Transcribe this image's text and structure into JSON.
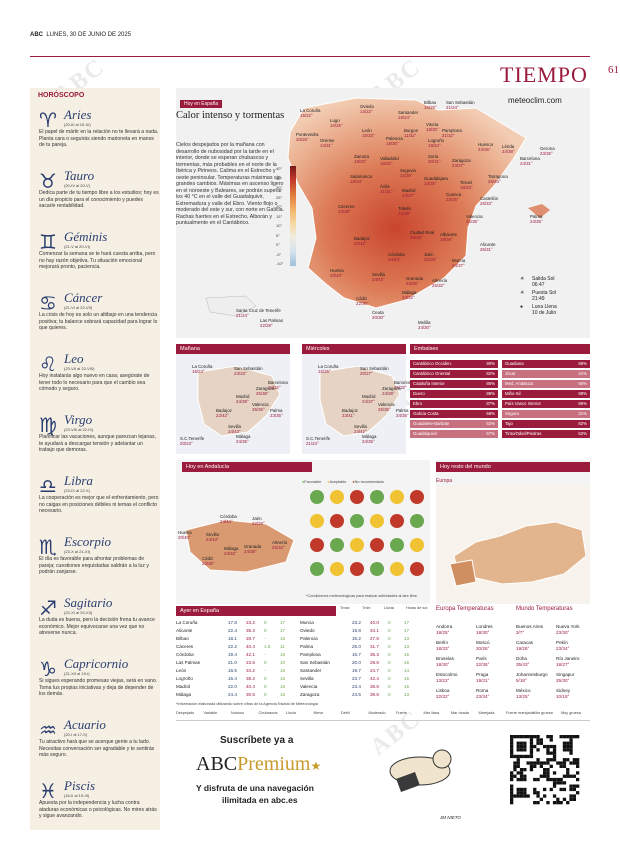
{
  "header": {
    "paper": "ABC",
    "date": "LUNES, 30 DE JUNIO DE 2025",
    "section": "TIEMPO",
    "page": "61"
  },
  "horoscope": {
    "title": "HORÓSCOPO",
    "signs": [
      {
        "sym": "♈",
        "name": "Aries",
        "dates": "(20-III al 19-IV)",
        "text": "El papel de mártir en la relación no te llevará a nada. Planta cara o seguirás siendo marioneta en manos de tu pareja."
      },
      {
        "sym": "♉",
        "name": "Tauro",
        "dates": "(20-IV al 20-V)",
        "text": "Dedica parte de tu tiempo libre a los estudios; hoy es un día propicio para el conocimiento y puedes sacarle rentabilidad."
      },
      {
        "sym": "♊",
        "name": "Géminis",
        "dates": "(21-V al 20-VI)",
        "text": "Comenzar la semana se te hará cuesta arriba, pero no hay razón objetiva. Tu situación emocional mejorará pronto, paciencia."
      },
      {
        "sym": "♋",
        "name": "Cáncer",
        "dates": "(21-VI al 22-VII)",
        "text": "La crisis de hoy es solo un altibajo en una tendencia positiva; tu balance sobrará capacidad para lograr lo que quieres."
      },
      {
        "sym": "♌",
        "name": "Leo",
        "dates": "(23-VII al 22-VIII)",
        "text": "Hoy instalarás algo nuevo en casa; asegúrate de tener todo lo necesario para que el cambio sea cómodo y seguro."
      },
      {
        "sym": "♍",
        "name": "Virgo",
        "dates": "(23-VIII al 22-IX)",
        "text": "Planificar las vacaciones, aunque parezcan lejanas, te ayudará a descargar tensión y adelantar un trabajo que demoras."
      },
      {
        "sym": "♎",
        "name": "Libra",
        "dates": "(23-IX al 22-X)",
        "text": "La cooperación es mejor que el enfrentamiento, pero no caigas en posiciones débiles ni temas el conflicto necesario."
      },
      {
        "sym": "♏",
        "name": "Escorpio",
        "dates": "(23-X al 21-XI)",
        "text": "El día es favorable para afrontar problemas de pareja; cuestiones enquistadas saldrán a la luz y podrán zanjarse."
      },
      {
        "sym": "♐",
        "name": "Sagitario",
        "dates": "(22-XI al 20-XII)",
        "text": "La duda es buena, pero la decisión frena tu avance económico. Mejor equivocarse una vez que no atreverse nunca."
      },
      {
        "sym": "♑",
        "name": "Capricornio",
        "dates": "(21-XII al 19-I)",
        "text": "Si sigues esperando promesas viejas, será en vano. Toma tus propias iniciativas y deja de depender de los demás."
      },
      {
        "sym": "♒",
        "name": "Acuario",
        "dates": "(20-I al 17-II)",
        "text": "Tu atractivo hará que se acerque gente a tu lado. Necesitas conversación ser agradable y te sentirás más seguro."
      },
      {
        "sym": "♓",
        "name": "Piscis",
        "dates": "(18-II al 19-III)",
        "text": "Apuesta por la independencia y lucha contra ataduras económicas o psicológicas. No mires atrás y sigue avanzando."
      }
    ]
  },
  "today": {
    "tag": "Hoy en España",
    "title": "Calor intenso y tormentas",
    "text": "Cielos despejados por la mañana con desarrollo de nubosidad por la tarde en el interior, donde se esperan chubascos y tormentas, más probables en el norte de la Ibérica y Pirineos. Calima en el Estrecho y oeste peninsular. Temperaturas máximas sin grandes cambios. Máximas en ascenso ligero en el noroeste y Baleares, se podrán superar los 40 °C en el valle del Guadalquivir, Extremadura y valle del Ebro. Viento flojo o moderado del este y sur, con norte en Galicia. Rachas fuertes en el Estrecho, Alborán y puntualmente en el Cantábrico.",
    "site": "meteoclim.com",
    "legend": [
      "40°",
      "35°",
      "30°",
      "25°",
      "20°",
      "15°",
      "10°",
      "5°",
      "0°",
      "-5°",
      "-10°"
    ],
    "sun": {
      "rise_label": "Salida Sol",
      "rise": "06:47",
      "set_label": "Puesta Sol",
      "set": "21:49",
      "moon_label": "Luna Llena",
      "moon": "10 de Julio"
    },
    "cities": [
      {
        "n": "La Coruña",
        "t": "15/22°"
      },
      {
        "n": "Oviedo",
        "t": "14/22°"
      },
      {
        "n": "Santander",
        "t": "18/24°"
      },
      {
        "n": "Bilbao",
        "t": "16/25°"
      },
      {
        "n": "San Sebastián",
        "t": "21/24°"
      },
      {
        "n": "Lugo",
        "t": "10/26°"
      },
      {
        "n": "Pontevedra",
        "t": "20/26°"
      },
      {
        "n": "Orense",
        "t": "14/31°"
      },
      {
        "n": "León",
        "t": "16/33°"
      },
      {
        "n": "Palencia",
        "t": "18/30°"
      },
      {
        "n": "Burgos",
        "t": "11/32°"
      },
      {
        "n": "Vitoria",
        "t": "18/30°"
      },
      {
        "n": "Pamplona",
        "t": "21/32°"
      },
      {
        "n": "Logroño",
        "t": "18/34°"
      },
      {
        "n": "Huesca",
        "t": "24/36°"
      },
      {
        "n": "Lérida",
        "t": "24/38°"
      },
      {
        "n": "Gerona",
        "t": "23/35°"
      },
      {
        "n": "Barcelona",
        "t": "24/31°"
      },
      {
        "n": "Zamora",
        "t": "19/33°"
      },
      {
        "n": "Valladolid",
        "t": "18/32°"
      },
      {
        "n": "Soria",
        "t": "20/31°"
      },
      {
        "n": "Zaragoza",
        "t": "23/37°"
      },
      {
        "n": "Tarragona",
        "t": "26/33°"
      },
      {
        "n": "Salamanca",
        "t": "18/34°"
      },
      {
        "n": "Segovia",
        "t": "22/35°"
      },
      {
        "n": "Ávila",
        "t": "21/31°"
      },
      {
        "n": "Guadalajara",
        "t": "23/35°"
      },
      {
        "n": "Teruel",
        "t": "18/33°"
      },
      {
        "n": "Castellón",
        "t": "26/33°"
      },
      {
        "n": "Madrid",
        "t": "24/37°"
      },
      {
        "n": "Cuenca",
        "t": "23/35°"
      },
      {
        "n": "Palma",
        "t": "24/35°"
      },
      {
        "n": "Cáceres",
        "t": "23/39°"
      },
      {
        "n": "Toledo",
        "t": "24/39°"
      },
      {
        "n": "Valencia",
        "t": "25/35°"
      },
      {
        "n": "Ciudad Real",
        "t": "26/38°"
      },
      {
        "n": "Albacete",
        "t": "19/39°"
      },
      {
        "n": "Badajoz",
        "t": "22/42°"
      },
      {
        "n": "Alicante",
        "t": "26/31°"
      },
      {
        "n": "Córdoba",
        "t": "24/44°"
      },
      {
        "n": "Jaén",
        "t": "22/39°"
      },
      {
        "n": "Murcia",
        "t": "24/37°"
      },
      {
        "n": "Huelva",
        "t": "20/40°"
      },
      {
        "n": "Sevilla",
        "t": "24/43°"
      },
      {
        "n": "Granada",
        "t": "24/38°"
      },
      {
        "n": "Almería",
        "t": "25/32°"
      },
      {
        "n": "Málaga",
        "t": "24/32°"
      },
      {
        "n": "Cádiz",
        "t": "22/30°"
      },
      {
        "n": "Ceuta",
        "t": "20/30°"
      },
      {
        "n": "Melilla",
        "t": "24/30°"
      },
      {
        "n": "Santa Cruz de Tenerife",
        "t": "21/24°"
      },
      {
        "n": "Las Palmas",
        "t": "22/28°"
      }
    ]
  },
  "forecast": {
    "tomorrow_tag": "Mañana",
    "wed_tag": "Miércoles",
    "tomorrow_cities": [
      {
        "n": "La Coruña",
        "t": "16/24°"
      },
      {
        "n": "San Sebastián",
        "t": "23/33°"
      },
      {
        "n": "Zaragoza",
        "t": "25/38°"
      },
      {
        "n": "Barcelona",
        "t": "24/32°"
      },
      {
        "n": "Madrid",
        "t": "24/39°"
      },
      {
        "n": "Valencia",
        "t": "25/36°"
      },
      {
        "n": "Palma",
        "t": "23/35°"
      },
      {
        "n": "Badajoz",
        "t": "22/42°"
      },
      {
        "n": "Sevilla",
        "t": "24/43°"
      },
      {
        "n": "Málaga",
        "t": "24/35°"
      },
      {
        "n": "S.C.Tenerife",
        "t": "20/23°"
      }
    ],
    "wed_cities": [
      {
        "n": "La Coruña",
        "t": "16/25°"
      },
      {
        "n": "San Sebastián",
        "t": "20/27°"
      },
      {
        "n": "Zaragoza",
        "t": "24/38°"
      },
      {
        "n": "Barcelona",
        "t": "25/32°"
      },
      {
        "n": "Madrid",
        "t": "24/37°"
      },
      {
        "n": "Valencia",
        "t": "25/35°"
      },
      {
        "n": "Palma",
        "t": "24/35°"
      },
      {
        "n": "Badajoz",
        "t": "23/41°"
      },
      {
        "n": "Sevilla",
        "t": "24/42°"
      },
      {
        "n": "Málaga",
        "t": "24/35°"
      },
      {
        "n": "S.C.Tenerife",
        "t": "21/24°"
      }
    ]
  },
  "reservoirs": {
    "tag": "Embalses",
    "left": [
      {
        "n": "Cantábrico Occiden.",
        "v": "90%",
        "c": "#9a1b3c"
      },
      {
        "n": "Cantábrico Oriental",
        "v": "82%",
        "c": "#9a1b3c"
      },
      {
        "n": "Cataluña Interior",
        "v": "86%",
        "c": "#9a1b3c"
      },
      {
        "n": "Duero",
        "v": "88%",
        "c": "#9a1b3c"
      },
      {
        "n": "Ebro",
        "v": "87%",
        "c": "#9a1b3c"
      },
      {
        "n": "Galicia Costa",
        "v": "68%",
        "c": "#9a1b3c"
      },
      {
        "n": "Guadalete-Barbate",
        "v": "52%",
        "c": "#c7707f"
      },
      {
        "n": "Guadalquivir",
        "v": "57%",
        "c": "#c7707f"
      }
    ],
    "right": [
      {
        "n": "Guadiana",
        "v": "68%",
        "c": "#9a1b3c"
      },
      {
        "n": "Júcar",
        "v": "41%",
        "c": "#c7707f"
      },
      {
        "n": "Med. Andaluza",
        "v": "56%",
        "c": "#c7707f"
      },
      {
        "n": "Miño-Sil",
        "v": "88%",
        "c": "#9a1b3c"
      },
      {
        "n": "País Vasco Interior",
        "v": "95%",
        "c": "#9a1b3c"
      },
      {
        "n": "Segura",
        "v": "31%",
        "c": "#c7707f"
      },
      {
        "n": "Tajo",
        "v": "82%",
        "c": "#9a1b3c"
      },
      {
        "n": "Tinto/Odiel/Piedras",
        "v": "62%",
        "c": "#9a1b3c"
      }
    ]
  },
  "andalucia": {
    "tag": "Hoy en Andalucía",
    "legend": [
      "Favorable",
      "Aceptable",
      "No recomendado"
    ],
    "cities": [
      {
        "n": "Córdoba",
        "t": "24/44°"
      },
      {
        "n": "Jaén",
        "t": "22/39°"
      },
      {
        "n": "Huelva",
        "t": "20/40°"
      },
      {
        "n": "Sevilla",
        "t": "24/43°"
      },
      {
        "n": "Málaga",
        "t": "24/32°"
      },
      {
        "n": "Granada",
        "t": "24/38°"
      },
      {
        "n": "Almería",
        "t": "25/32°"
      },
      {
        "n": "Cádiz",
        "t": "22/30°"
      }
    ],
    "note": "*Condiciones meteorológicas para realizar actividades al aire libre"
  },
  "world": {
    "tag": "Hoy resto del mundo",
    "region": "Europa"
  },
  "yesterday": {
    "tag": "Ayer en España",
    "headers": [
      "Tmax",
      "Tmin",
      "Lluvia",
      "Horas de sol"
    ],
    "rows_left": [
      [
        "La Coruña",
        "17.8",
        "23.2",
        "0",
        "17"
      ],
      [
        "Alicante",
        "22.4",
        "35.3",
        "0",
        "17"
      ],
      [
        "Bilbao",
        "18.1",
        "28.7",
        "-",
        "15"
      ],
      [
        "Cáceres",
        "22.2",
        "40.4",
        "1.6",
        "11"
      ],
      [
        "Córdoba",
        "19.4",
        "42.1",
        "-",
        "16"
      ],
      [
        "Las Palmas",
        "21.0",
        "23.5",
        "0",
        "10"
      ],
      [
        "León",
        "16.5",
        "34.2",
        "-",
        "16"
      ],
      [
        "Logroño",
        "16.4",
        "38.2",
        "0",
        "15"
      ],
      [
        "Madrid",
        "22.0",
        "40.4",
        "0",
        "16"
      ],
      [
        "Málaga",
        "24.4",
        "30.5",
        "0",
        "15"
      ]
    ],
    "rows_right": [
      [
        "Murcia",
        "23.2",
        "40.0",
        "0",
        "17"
      ],
      [
        "Oviedo",
        "19.8",
        "34.1",
        "0",
        "17"
      ],
      [
        "Palencia",
        "16.2",
        "27.8",
        "0",
        "13"
      ],
      [
        "Palma",
        "25.0",
        "31.7",
        "0",
        "13"
      ],
      [
        "Pamplona",
        "16.7",
        "35.3",
        "0",
        "15"
      ],
      [
        "San Sebastián",
        "20.0",
        "28.8",
        "0",
        "16"
      ],
      [
        "Santander",
        "19.7",
        "24.7",
        "0",
        "14"
      ],
      [
        "Sevilla",
        "23.7",
        "42.4",
        "0",
        "15"
      ],
      [
        "Valencia",
        "23.4",
        "36.8",
        "0",
        "15"
      ],
      [
        "Zaragoza",
        "24.5",
        "39.8",
        "0",
        "13"
      ]
    ],
    "note": "*Información elaborada utilizando sobre cifras de la Agencia Estatal de Meteorología"
  },
  "europe": {
    "title": "Europa Temperaturas",
    "rows": [
      [
        "Andorra",
        "18/25°",
        "Londres",
        "18/30°"
      ],
      [
        "Berlín",
        "18/33°",
        "Moscú",
        "20/26°"
      ],
      [
        "Bruselas",
        "18/30°",
        "París",
        "22/36°"
      ],
      [
        "Estocolmo",
        "13/22°",
        "Praga",
        "19/31°"
      ],
      [
        "Lisboa",
        "22/32°",
        "Roma",
        "23/34°"
      ]
    ]
  },
  "world_temps": {
    "title": "Mundo Temperaturas",
    "rows": [
      [
        "Buenos Aires",
        "3/7°",
        "Nueva York",
        "23/30°"
      ],
      [
        "Caracas",
        "19/26°",
        "Pekín",
        "23/34°"
      ],
      [
        "Doha",
        "35/43°",
        "Río Janeiro",
        "18/27°"
      ],
      [
        "Johannesburgo",
        "5/18°",
        "Singapur",
        "25/30°"
      ],
      [
        "México",
        "13/25°",
        "Sidney",
        "10/18°"
      ]
    ]
  },
  "symbols": [
    "Despejado",
    "Variable",
    "Nuboso",
    "Chubascos",
    "Lluvia",
    "Nieve",
    "Débil",
    "Moderado",
    "Fuerte",
    "Mar llana",
    "Mar rizada",
    "Marejada",
    "Fuerte marejada",
    "Mar gruesa",
    "Muy gruesa"
  ],
  "ad": {
    "line1": "Suscríbete ya a",
    "brand1": "ABC",
    "brand2": "Premium",
    "line2": "Y disfruta de una navegación",
    "line3": "ilimitada en abc.es",
    "signature": "JM NIETO"
  }
}
